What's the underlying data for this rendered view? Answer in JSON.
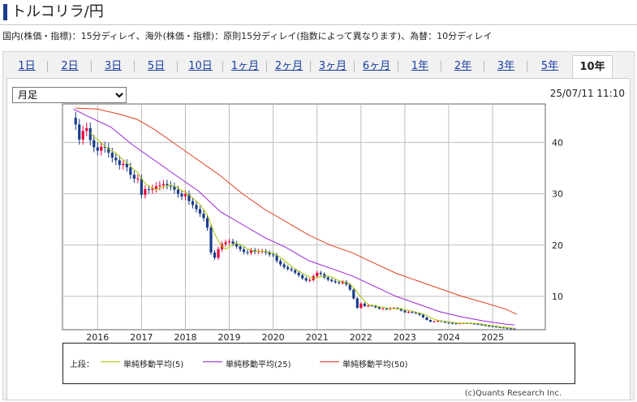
{
  "header": {
    "title": "トルコリラ/円"
  },
  "notice": "国内(株価・指標)：15分ディレイ、海外(株価・指標)：原則15分ディレイ(指数によって異なります)、為替：10分ディレイ",
  "tabs": [
    {
      "label": "1日",
      "active": false
    },
    {
      "label": "2日",
      "active": false
    },
    {
      "label": "3日",
      "active": false
    },
    {
      "label": "5日",
      "active": false
    },
    {
      "label": "10日",
      "active": false
    },
    {
      "label": "1ヶ月",
      "active": false
    },
    {
      "label": "2ヶ月",
      "active": false
    },
    {
      "label": "3ヶ月",
      "active": false
    },
    {
      "label": "6ヶ月",
      "active": false
    },
    {
      "label": "1年",
      "active": false
    },
    {
      "label": "2年",
      "active": false
    },
    {
      "label": "3年",
      "active": false
    },
    {
      "label": "5年",
      "active": false
    },
    {
      "label": "10年",
      "active": true
    }
  ],
  "period_select": {
    "value": "月足"
  },
  "timestamp": "25/07/11 11:10",
  "legend": {
    "prefix": "上段：",
    "items": [
      {
        "label": "単純移動平均(5)",
        "color": "#a8c800"
      },
      {
        "label": "単純移動平均(25)",
        "color": "#9a22d6"
      },
      {
        "label": "単純移動平均(50)",
        "color": "#e0401e"
      }
    ]
  },
  "credit": "(c)Quants Research Inc.",
  "chart_data": {
    "type": "candlestick",
    "xlabel": "",
    "ylabel": "",
    "x_ticks": [
      "2016",
      "2017",
      "2018",
      "2019",
      "2020",
      "2021",
      "2022",
      "2023",
      "2024",
      "2025"
    ],
    "y_ticks": [
      10,
      20,
      30,
      40
    ],
    "xlim": [
      2015.2,
      2026.2
    ],
    "ylim": [
      3.5,
      47.5
    ],
    "y_axis_side": "right",
    "grid": true,
    "up_color": "#e8003c",
    "down_color": "#1a3a8c",
    "close_anchors": [
      [
        2015.5,
        43.5
      ],
      [
        2015.58,
        40.5
      ],
      [
        2015.67,
        42.3
      ],
      [
        2015.75,
        42.8
      ],
      [
        2015.83,
        40.5
      ],
      [
        2015.92,
        39.0
      ],
      [
        2016.0,
        38.4
      ],
      [
        2016.1,
        39.3
      ],
      [
        2016.2,
        38.8
      ],
      [
        2016.3,
        37.2
      ],
      [
        2016.4,
        36.7
      ],
      [
        2016.5,
        35.6
      ],
      [
        2016.6,
        35.9
      ],
      [
        2016.7,
        34.8
      ],
      [
        2016.8,
        32.6
      ],
      [
        2016.9,
        33.6
      ],
      [
        2017.0,
        29.8
      ],
      [
        2017.1,
        31.1
      ],
      [
        2017.2,
        30.6
      ],
      [
        2017.3,
        31.4
      ],
      [
        2017.4,
        31.6
      ],
      [
        2017.5,
        31.9
      ],
      [
        2017.6,
        31.6
      ],
      [
        2017.7,
        31.3
      ],
      [
        2017.8,
        30.3
      ],
      [
        2017.9,
        29.4
      ],
      [
        2018.0,
        29.9
      ],
      [
        2018.1,
        28.3
      ],
      [
        2018.2,
        27.6
      ],
      [
        2018.3,
        26.4
      ],
      [
        2018.4,
        25.6
      ],
      [
        2018.5,
        23.4
      ],
      [
        2018.58,
        18.6
      ],
      [
        2018.66,
        17.4
      ],
      [
        2018.75,
        19.2
      ],
      [
        2018.85,
        20.4
      ],
      [
        2019.0,
        20.7
      ],
      [
        2019.1,
        20.2
      ],
      [
        2019.2,
        19.5
      ],
      [
        2019.3,
        18.8
      ],
      [
        2019.4,
        18.4
      ],
      [
        2019.5,
        19.0
      ],
      [
        2019.6,
        18.6
      ],
      [
        2019.7,
        18.9
      ],
      [
        2019.8,
        18.7
      ],
      [
        2019.9,
        18.2
      ],
      [
        2020.0,
        18.0
      ],
      [
        2020.1,
        16.7
      ],
      [
        2020.2,
        16.0
      ],
      [
        2020.3,
        15.4
      ],
      [
        2020.4,
        15.2
      ],
      [
        2020.5,
        14.6
      ],
      [
        2020.6,
        14.0
      ],
      [
        2020.7,
        13.3
      ],
      [
        2020.8,
        12.9
      ],
      [
        2020.9,
        13.8
      ],
      [
        2021.0,
        14.6
      ],
      [
        2021.1,
        14.3
      ],
      [
        2021.2,
        13.4
      ],
      [
        2021.3,
        13.1
      ],
      [
        2021.4,
        12.8
      ],
      [
        2021.5,
        12.6
      ],
      [
        2021.6,
        12.9
      ],
      [
        2021.7,
        12.0
      ],
      [
        2021.8,
        10.6
      ],
      [
        2021.9,
        7.6
      ],
      [
        2022.0,
        8.6
      ],
      [
        2022.1,
        8.0
      ],
      [
        2022.2,
        8.3
      ],
      [
        2022.3,
        8.0
      ],
      [
        2022.4,
        7.6
      ],
      [
        2022.5,
        7.6
      ],
      [
        2022.6,
        7.5
      ],
      [
        2022.7,
        7.8
      ],
      [
        2022.8,
        7.7
      ],
      [
        2022.9,
        7.3
      ],
      [
        2023.0,
        6.9
      ],
      [
        2023.1,
        7.0
      ],
      [
        2023.2,
        6.8
      ],
      [
        2023.3,
        6.6
      ],
      [
        2023.4,
        6.0
      ],
      [
        2023.5,
        5.4
      ],
      [
        2023.6,
        5.0
      ],
      [
        2023.7,
        5.2
      ],
      [
        2023.8,
        5.2
      ],
      [
        2023.9,
        4.9
      ],
      [
        2024.0,
        4.8
      ],
      [
        2024.1,
        4.7
      ],
      [
        2024.2,
        4.7
      ],
      [
        2024.3,
        4.8
      ],
      [
        2024.4,
        4.8
      ],
      [
        2024.5,
        4.7
      ],
      [
        2024.6,
        4.6
      ],
      [
        2024.7,
        4.5
      ],
      [
        2024.8,
        4.3
      ],
      [
        2024.9,
        4.2
      ],
      [
        2025.0,
        4.1
      ],
      [
        2025.1,
        4.0
      ],
      [
        2025.2,
        3.9
      ],
      [
        2025.3,
        3.8
      ],
      [
        2025.4,
        3.7
      ],
      [
        2025.5,
        3.6
      ]
    ],
    "series": [
      {
        "name": "単純移動平均(5)",
        "color": "#a8c800",
        "period": 5
      },
      {
        "name": "単純移動平均(25)",
        "color": "#9a22d6",
        "points": [
          [
            2015.45,
            46.5
          ],
          [
            2015.8,
            45.0
          ],
          [
            2016.3,
            43.0
          ],
          [
            2016.8,
            39.5
          ],
          [
            2017.3,
            36.5
          ],
          [
            2017.8,
            33.5
          ],
          [
            2018.3,
            30.5
          ],
          [
            2018.8,
            26.5
          ],
          [
            2019.3,
            24.0
          ],
          [
            2019.8,
            21.5
          ],
          [
            2020.3,
            19.5
          ],
          [
            2020.8,
            17.0
          ],
          [
            2021.3,
            15.5
          ],
          [
            2021.8,
            14.0
          ],
          [
            2022.3,
            12.0
          ],
          [
            2022.8,
            10.0
          ],
          [
            2023.3,
            8.5
          ],
          [
            2023.8,
            7.0
          ],
          [
            2024.3,
            6.0
          ],
          [
            2024.8,
            5.2
          ],
          [
            2025.3,
            4.6
          ],
          [
            2025.5,
            4.4
          ]
        ]
      },
      {
        "name": "単純移動平均(50)",
        "color": "#e0401e",
        "points": [
          [
            2015.5,
            46.7
          ],
          [
            2016.0,
            46.5
          ],
          [
            2016.5,
            45.5
          ],
          [
            2016.9,
            44.5
          ],
          [
            2017.3,
            42.5
          ],
          [
            2017.8,
            39.5
          ],
          [
            2018.3,
            36.5
          ],
          [
            2018.8,
            33.5
          ],
          [
            2019.3,
            30.0
          ],
          [
            2019.8,
            27.0
          ],
          [
            2020.3,
            24.5
          ],
          [
            2020.8,
            22.0
          ],
          [
            2021.3,
            20.0
          ],
          [
            2021.8,
            18.5
          ],
          [
            2022.3,
            16.5
          ],
          [
            2022.8,
            14.5
          ],
          [
            2023.3,
            13.0
          ],
          [
            2023.8,
            11.5
          ],
          [
            2024.3,
            10.0
          ],
          [
            2024.8,
            8.8
          ],
          [
            2025.3,
            7.5
          ],
          [
            2025.55,
            6.5
          ]
        ]
      }
    ]
  }
}
